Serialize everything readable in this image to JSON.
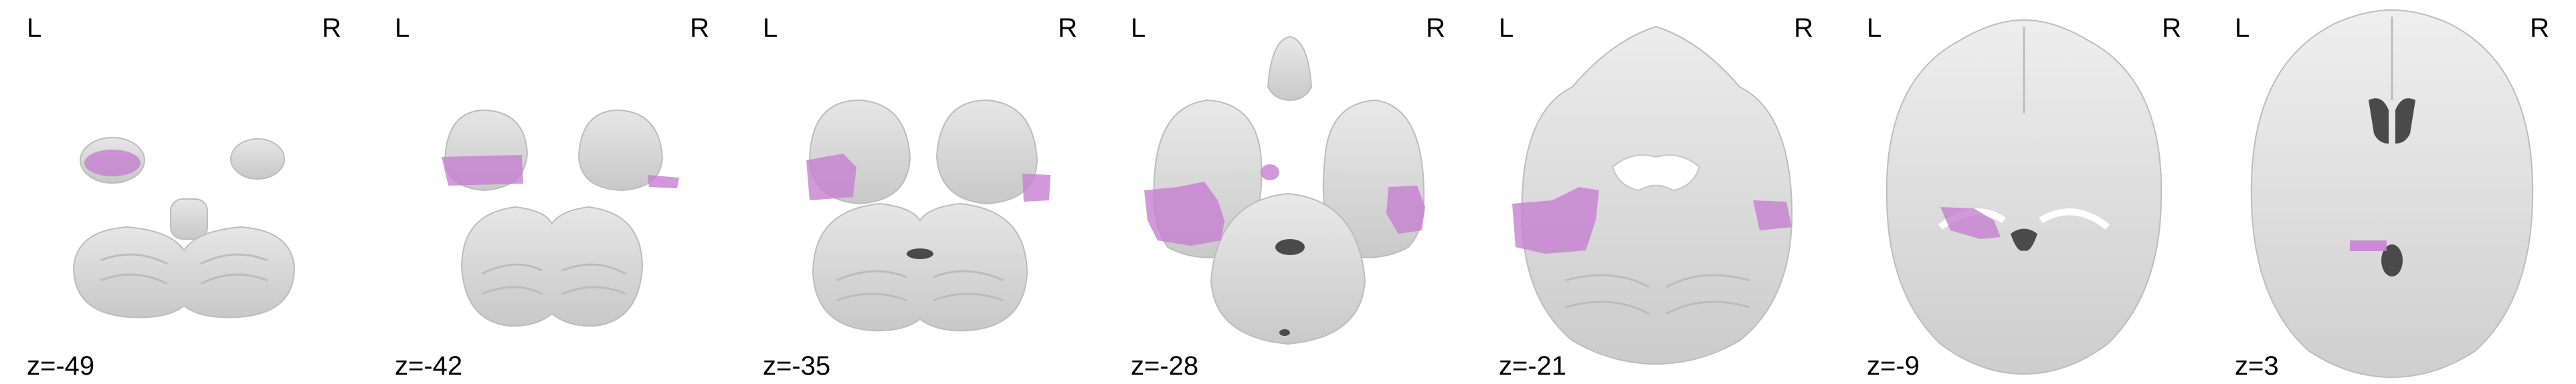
{
  "figure": {
    "orientation_left": "L",
    "orientation_right": "R",
    "slices": [
      {
        "z_label": "z=-49"
      },
      {
        "z_label": "z=-42"
      },
      {
        "z_label": "z=-35"
      },
      {
        "z_label": "z=-28"
      },
      {
        "z_label": "z=-21"
      },
      {
        "z_label": "z=-9"
      },
      {
        "z_label": "z=3"
      }
    ],
    "colors": {
      "background": "#ffffff",
      "brain_tissue": "#d9d9d9",
      "brain_edge": "#b7b7b7",
      "ventricle": "#4a4a4a",
      "overlay": "#c77fd1"
    }
  }
}
